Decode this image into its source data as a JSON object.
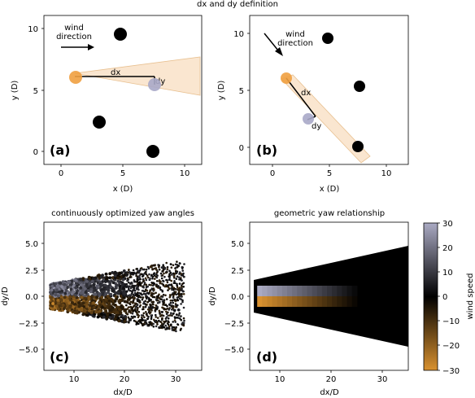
{
  "figure_title": "dx and dy definition",
  "chart_data": [
    {
      "id": "a",
      "type": "scatter",
      "panel_label": "(a)",
      "xlabel": "x (D)",
      "ylabel": "y (D)",
      "xlim": [
        -1.4,
        11.4
      ],
      "ylim": [
        -1.0,
        11.0
      ],
      "xticks": [
        0,
        5,
        10
      ],
      "yticks": [
        0,
        5,
        10
      ],
      "wind_label": "wind\ndirection",
      "upstream_turbine": {
        "x": 1.2,
        "y": 6.1
      },
      "downstream_turbine": {
        "x": 7.6,
        "y": 5.4
      },
      "other_turbines": [
        {
          "x": 4.8,
          "y": 9.6
        },
        {
          "x": 3.1,
          "y": 2.4
        },
        {
          "x": 7.5,
          "y": 0.0
        }
      ],
      "dx_label": "dx",
      "dy_label": "dy"
    },
    {
      "id": "b",
      "type": "scatter",
      "panel_label": "(b)",
      "xlabel": "x (D)",
      "ylabel": "y (D)",
      "xlim": [
        -1.4,
        12.0
      ],
      "ylim": [
        -1.0,
        11.5
      ],
      "xticks": [
        0,
        5,
        10
      ],
      "yticks": [
        0,
        5,
        10
      ],
      "wind_label": "wind\ndirection",
      "upstream_turbine": {
        "x": 1.2,
        "y": 6.1
      },
      "downstream_turbine": {
        "x": 3.1,
        "y": 2.5
      },
      "other_turbines": [
        {
          "x": 4.8,
          "y": 9.5
        },
        {
          "x": 7.6,
          "y": 5.4
        },
        {
          "x": 7.5,
          "y": 0.1
        }
      ],
      "dx_label": "dx",
      "dy_label": "dy"
    },
    {
      "id": "c",
      "type": "scatter",
      "panel_label": "(c)",
      "title": "continuously optimized yaw angles",
      "xlabel": "dx/D",
      "ylabel": "dy/D",
      "xlim": [
        3.5,
        35.3
      ],
      "ylim": [
        -7.0,
        7.0
      ],
      "xticks": [
        10,
        20,
        30
      ],
      "yticks": [
        5.0,
        2.5,
        0.0,
        -2.5,
        -5.0
      ],
      "ytick_labels": [
        "5.0",
        "2.5",
        "0.0",
        "−2.5",
        "−5.0"
      ],
      "color_encoding": "wind speed"
    },
    {
      "id": "d",
      "type": "heatmap",
      "panel_label": "(d)",
      "title": "geometric yaw relationship",
      "xlabel": "dx/D",
      "ylabel": "dy/D",
      "xlim": [
        3.5,
        35.3
      ],
      "ylim": [
        -7.0,
        7.0
      ],
      "xticks": [
        10,
        20,
        30
      ],
      "yticks": [
        5.0,
        2.5,
        0.0,
        -2.5,
        -5.0
      ],
      "ytick_labels": [
        "5.0",
        "2.5",
        "0.0",
        "−2.5",
        "−5.0"
      ],
      "wedge": {
        "x_start": 5,
        "x_end": 35,
        "half_width_start": 1.5,
        "half_width_end": 4.8
      },
      "colored_band": {
        "x_start": 5,
        "x_end": 25,
        "dy_min": -1.0,
        "dy_max": 1.0
      }
    }
  ],
  "colorbar": {
    "label": "wind speed",
    "range": [
      -30,
      30
    ],
    "ticks": [
      30,
      20,
      10,
      0,
      -10,
      -20,
      -30
    ],
    "tick_labels": [
      "30",
      "20",
      "10",
      "0",
      "−10",
      "−20",
      "−30"
    ],
    "color_top": "#aaaac3",
    "color_mid": "#000000",
    "color_bottom": "#d9912f"
  },
  "colors": {
    "upstream": "#f0a040",
    "downstream": "#a8a8c8",
    "turbine": "#000000",
    "wake_fill": "#fae6d0",
    "wake_edge": "#e8c090"
  }
}
